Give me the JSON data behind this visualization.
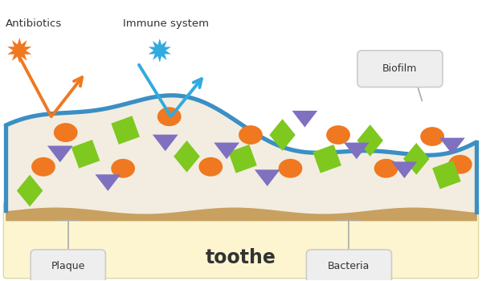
{
  "bg_color": "#ffffff",
  "tooth_color": "#fdf5d0",
  "tooth_border": "#ddd8a0",
  "plaque_color": "#c8a060",
  "biofilm_fill": "#f2ede0",
  "biofilm_border": "#3a8fc4",
  "orange_color": "#f07820",
  "blue_color": "#30aae0",
  "green_color": "#7ec820",
  "purple_color": "#8070c0",
  "label_box_facecolor": "#eeeeee",
  "label_box_edgecolor": "#cccccc",
  "connector_color": "#aaaaaa",
  "text_color": "#333333",
  "title": "toothe",
  "antibiotics_label": "Antibiotics",
  "immune_label": "Immune system",
  "biofilm_label": "Biofilm",
  "plaque_label": "Plaque",
  "bacteria_label": "Bacteria"
}
